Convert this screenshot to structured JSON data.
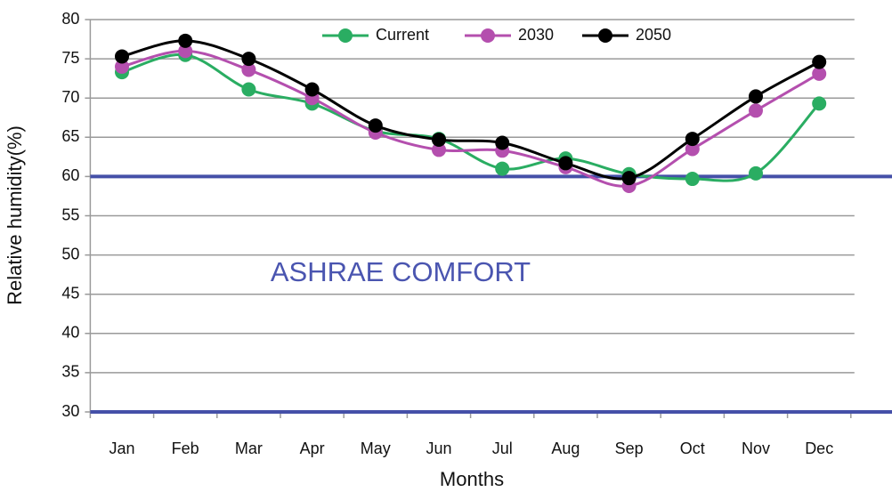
{
  "chart_data": {
    "type": "line",
    "xlabel": "Months",
    "ylabel": "Relative humidity(%)",
    "annotation": "ASHRAE COMFORT",
    "categories": [
      "Jan",
      "Feb",
      "Mar",
      "Apr",
      "May",
      "Jun",
      "Jul",
      "Aug",
      "Sep",
      "Oct",
      "Nov",
      "Dec"
    ],
    "series": [
      {
        "name": "Current",
        "color": "#2aad62",
        "values": [
          73.3,
          75.5,
          71.1,
          69.3,
          65.8,
          64.8,
          61.0,
          62.3,
          60.3,
          59.7,
          60.4,
          69.3
        ]
      },
      {
        "name": "2030",
        "color": "#b44fae",
        "values": [
          74.0,
          76.0,
          73.6,
          70.0,
          65.6,
          63.4,
          63.3,
          61.2,
          58.8,
          63.5,
          68.4,
          73.1
        ]
      },
      {
        "name": "2050",
        "color": "#000000",
        "values": [
          75.3,
          77.3,
          75.0,
          71.1,
          66.5,
          64.7,
          64.3,
          61.7,
          59.8,
          64.8,
          70.2,
          74.6
        ]
      }
    ],
    "reference_lines": [
      {
        "value": 60,
        "color": "#4550a8"
      },
      {
        "value": 30,
        "color": "#4550a8"
      }
    ],
    "ylim": [
      30,
      80
    ],
    "yticks": [
      30,
      35,
      40,
      45,
      50,
      55,
      60,
      65,
      70,
      75,
      80
    ],
    "grid": true,
    "legend": "top"
  }
}
